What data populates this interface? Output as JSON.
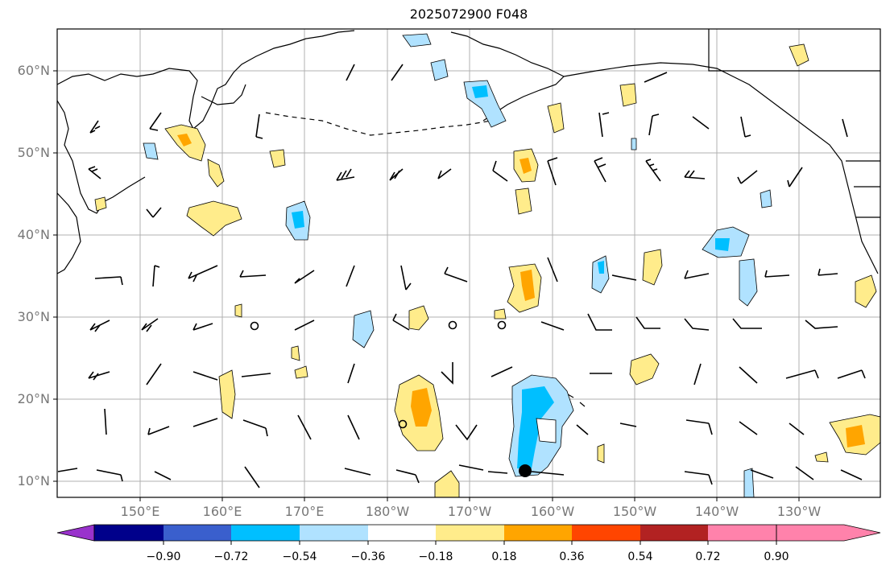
{
  "title": "2025072900 F048",
  "map": {
    "lat_labels": [
      "60°N",
      "50°N",
      "40°N",
      "30°N",
      "20°N",
      "10°N"
    ],
    "lon_labels": [
      "150°E",
      "160°E",
      "170°E",
      "180°W",
      "170°W",
      "160°W",
      "150°W",
      "140°W",
      "130°W"
    ]
  },
  "colorbar": {
    "ticks": [
      "−0.90",
      "−0.72",
      "−0.54",
      "−0.36",
      "−0.18",
      "0.18",
      "0.36",
      "0.54",
      "0.72",
      "0.90"
    ],
    "colors": [
      "#9932cc",
      "#00008b",
      "#3a5fcd",
      "#00bfff",
      "#b0e2ff",
      "#ffffff",
      "#ffec8b",
      "#ffa500",
      "#ff4500",
      "#b22222",
      "#ff82ab"
    ]
  }
}
